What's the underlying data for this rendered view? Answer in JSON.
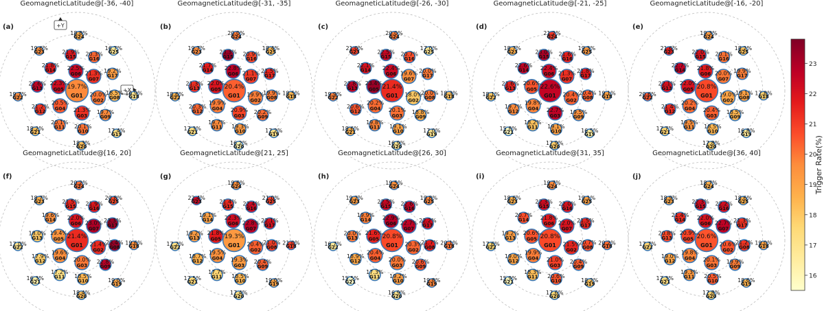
{
  "figure": {
    "colorbar_label": "Trigger Rate(%)",
    "colorbar_ticks": [
      16,
      17,
      18,
      19,
      20,
      21,
      22,
      23
    ],
    "colorbar_range": [
      15.5,
      23.8
    ],
    "axis_markers": {
      "y": "+Y",
      "x": "+X"
    }
  },
  "chart_data": [
    {
      "type": "bubble-map",
      "panel": "(a)",
      "title": "GeomagneticLatitude@[-36, -40]",
      "detectors": [
        "G01",
        "G02",
        "G03",
        "G04",
        "G05",
        "G06",
        "G07",
        "G08",
        "G09",
        "G10",
        "G11",
        "G12",
        "G13",
        "G14",
        "G15",
        "G16",
        "G17",
        "G18",
        "G19",
        "G20",
        "G21",
        "G22",
        "G23",
        "G24",
        "G25"
      ],
      "values": [
        19.7,
        20.0,
        21.3,
        20.5,
        22.3,
        22.5,
        21.3,
        18.5,
        19.7,
        20.1,
        20.1,
        21.2,
        22.6,
        21.8,
        21.9,
        20.3,
        19.2,
        16.9,
        17.4,
        18.3,
        18.2,
        19.7,
        19.6,
        18.8,
        16.7
      ]
    },
    {
      "type": "bubble-map",
      "panel": "(b)",
      "title": "GeomagneticLatitude@[-31, -35]",
      "detectors": [
        "G01",
        "G02",
        "G03",
        "G04",
        "G05",
        "G06",
        "G07",
        "G08",
        "G09",
        "G10",
        "G11",
        "G12",
        "G13",
        "G14",
        "G15",
        "G16",
        "G17",
        "G18",
        "G19",
        "G20",
        "G21",
        "G22",
        "G23",
        "G24",
        "G25"
      ],
      "values": [
        20.4,
        19.9,
        20.9,
        19.9,
        22.0,
        22.8,
        21.1,
        19.9,
        20.2,
        19.3,
        19.7,
        20.3,
        21.3,
        21.7,
        23.3,
        20.9,
        21.5,
        18.5,
        17.2,
        16.2,
        17.3,
        18.6,
        19.7,
        20.0,
        18.4
      ]
    },
    {
      "type": "bubble-map",
      "panel": "(c)",
      "title": "GeomagneticLatitude@[-26, -30]",
      "detectors": [
        "G01",
        "G02",
        "G03",
        "G04",
        "G05",
        "G06",
        "G07",
        "G08",
        "G09",
        "G10",
        "G11",
        "G12",
        "G13",
        "G14",
        "G15",
        "G16",
        "G17",
        "G18",
        "G19",
        "G20",
        "G21",
        "G22",
        "G23",
        "G24",
        "G25"
      ],
      "values": [
        21.4,
        18.0,
        20.1,
        20.2,
        23.4,
        22.4,
        19.6,
        20.0,
        18.8,
        19.1,
        19.8,
        20.6,
        22.8,
        22.1,
        22.5,
        20.7,
        20.0,
        18.3,
        17.0,
        16.9,
        18.6,
        19.9,
        21.0,
        20.0,
        17.0
      ]
    },
    {
      "type": "bubble-map",
      "panel": "(d)",
      "title": "GeomagneticLatitude@[-21, -25]",
      "detectors": [
        "G01",
        "G02",
        "G03",
        "G04",
        "G05",
        "G06",
        "G07",
        "G08",
        "G09",
        "G10",
        "G11",
        "G12",
        "G13",
        "G14",
        "G15",
        "G16",
        "G17",
        "G18",
        "G19",
        "G20",
        "G21",
        "G22",
        "G23",
        "G24",
        "G25"
      ],
      "values": [
        22.6,
        20.4,
        22.7,
        19.8,
        20.6,
        22.4,
        21.3,
        20.4,
        19.5,
        19.1,
        18.2,
        19.7,
        21.6,
        22.6,
        23.0,
        21.6,
        21.8,
        19.1,
        16.5,
        17.9,
        15.8,
        18.1,
        18.7,
        21.2,
        19.3
      ]
    },
    {
      "type": "bubble-map",
      "panel": "(e)",
      "title": "GeomagneticLatitude@[-16, -20]",
      "detectors": [
        "G01",
        "G02",
        "G03",
        "G04",
        "G05",
        "G06",
        "G07",
        "G08",
        "G09",
        "G10",
        "G11",
        "G12",
        "G13",
        "G14",
        "G15",
        "G16",
        "G17",
        "G18",
        "G19",
        "G20",
        "G21",
        "G22",
        "G23",
        "G24",
        "G25"
      ],
      "values": [
        20.8,
        19.0,
        20.4,
        20.2,
        22.0,
        21.8,
        20.0,
        19.1,
        18.5,
        18.5,
        19.5,
        21.4,
        22.1,
        22.7,
        22.0,
        20.1,
        19.9,
        17.8,
        16.8,
        17.8,
        17.7,
        20.6,
        21.6,
        19.3,
        18.2
      ]
    },
    {
      "type": "bubble-map",
      "panel": "(f)",
      "title": "GeomagneticLatitude@[16, 20]",
      "detectors": [
        "G01",
        "G02",
        "G03",
        "G04",
        "G05",
        "G06",
        "G07",
        "G08",
        "G09",
        "G10",
        "G11",
        "G12",
        "G13",
        "G14",
        "G15",
        "G16",
        "G17",
        "G18",
        "G19",
        "G20",
        "G21",
        "G22",
        "G23",
        "G24",
        "G25"
      ],
      "values": [
        21.4,
        21.4,
        20.0,
        19.6,
        19.4,
        22.0,
        23.0,
        23.4,
        22.8,
        18.5,
        17.2,
        17.9,
        18.0,
        19.6,
        21.5,
        21.9,
        23.3,
        19.6,
        19.0,
        18.4,
        16.3,
        17.0,
        18.7,
        20.2,
        20.8
      ]
    },
    {
      "type": "bubble-map",
      "panel": "(g)",
      "title": "GeomagneticLatitude@[21, 25]",
      "detectors": [
        "G01",
        "G02",
        "G03",
        "G04",
        "G05",
        "G06",
        "G07",
        "G08",
        "G09",
        "G10",
        "G11",
        "G12",
        "G13",
        "G14",
        "G15",
        "G16",
        "G17",
        "G18",
        "G19",
        "G20",
        "G21",
        "G22",
        "G23",
        "G24",
        "G25"
      ],
      "values": [
        19.3,
        20.4,
        19.3,
        19.5,
        21.8,
        22.3,
        22.8,
        21.0,
        20.4,
        18.5,
        17.7,
        18.7,
        19.2,
        19.1,
        21.4,
        22.4,
        22.1,
        21.0,
        19.0,
        17.4,
        17.5,
        17.2,
        22.4,
        19.6,
        21.0
      ]
    },
    {
      "type": "bubble-map",
      "panel": "(h)",
      "title": "GeomagneticLatitude@[26, 30]",
      "detectors": [
        "G01",
        "G02",
        "G03",
        "G04",
        "G05",
        "G06",
        "G07",
        "G08",
        "G09",
        "G10",
        "G11",
        "G12",
        "G13",
        "G14",
        "G15",
        "G16",
        "G17",
        "G18",
        "G19",
        "G20",
        "G21",
        "G22",
        "G23",
        "G24",
        "G25"
      ],
      "values": [
        20.8,
        20.3,
        20.0,
        20.4,
        21.6,
        22.9,
        22.7,
        21.7,
        20.6,
        19.2,
        17.3,
        18.9,
        20.0,
        19.9,
        22.5,
        22.6,
        22.2,
        20.1,
        19.8,
        16.9,
        15.5,
        16.7,
        19.2,
        19.5,
        19.8
      ]
    },
    {
      "type": "bubble-map",
      "panel": "(i)",
      "title": "GeomagneticLatitude@[31, 35]",
      "detectors": [
        "G01",
        "G02",
        "G03",
        "G04",
        "G05",
        "G06",
        "G07",
        "G08",
        "G09",
        "G10",
        "G11",
        "G12",
        "G13",
        "G14",
        "G15",
        "G16",
        "G17",
        "G18",
        "G19",
        "G20",
        "G21",
        "G22",
        "G23",
        "G24",
        "G25"
      ],
      "values": [
        20.8,
        21.5,
        21.0,
        19.9,
        20.6,
        21.8,
        22.0,
        20.7,
        20.4,
        20.6,
        18.3,
        19.0,
        19.2,
        20.7,
        22.3,
        22.0,
        21.5,
        20.2,
        18.2,
        17.6,
        15.9,
        17.6,
        18.6,
        19.7,
        19.1
      ]
    },
    {
      "type": "bubble-map",
      "panel": "(j)",
      "title": "GeomagneticLatitude@[36, 40]",
      "detectors": [
        "G01",
        "G02",
        "G03",
        "G04",
        "G05",
        "G06",
        "G07",
        "G08",
        "G09",
        "G10",
        "G11",
        "G12",
        "G13",
        "G14",
        "G15",
        "G16",
        "G17",
        "G18",
        "G19",
        "G20",
        "G21",
        "G22",
        "G23",
        "G24",
        "G25"
      ],
      "values": [
        20.6,
        20.6,
        20.1,
        19.8,
        20.9,
        22.0,
        22.7,
        21.2,
        19.9,
        20.5,
        19.3,
        19.0,
        20.8,
        21.4,
        22.3,
        22.2,
        21.3,
        19.0,
        18.6,
        17.8,
        17.3,
        17.7,
        18.9,
        18.7,
        18.6
      ]
    }
  ]
}
